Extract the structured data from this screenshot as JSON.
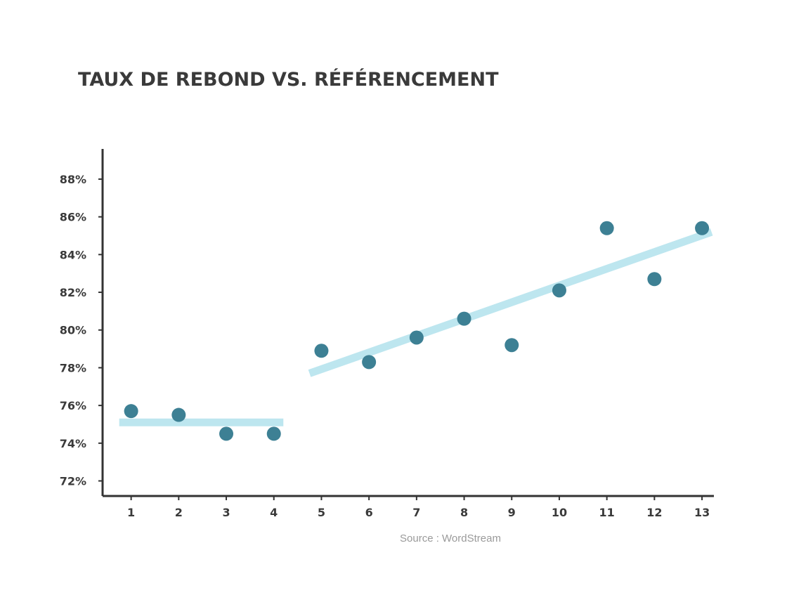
{
  "chart_data": {
    "type": "scatter",
    "title": "TAUX DE REBOND VS. RÉFÉRENCEMENT",
    "xlabel": "",
    "ylabel": "",
    "x": [
      1,
      2,
      3,
      4,
      5,
      6,
      7,
      8,
      9,
      10,
      11,
      12,
      13
    ],
    "x_tick_labels": [
      "1",
      "2",
      "3",
      "4",
      "5",
      "6",
      "7",
      "8",
      "9",
      "10",
      "11",
      "12",
      "13"
    ],
    "y_tick_labels": [
      "72%",
      "74%",
      "76%",
      "78%",
      "80%",
      "82%",
      "84%",
      "86%",
      "88%"
    ],
    "y_ticks": [
      72,
      74,
      76,
      78,
      80,
      82,
      84,
      86,
      88
    ],
    "ylim": [
      71.2,
      89.6
    ],
    "xlim": [
      0.4,
      13.25
    ],
    "series": [
      {
        "values": [
          75.7,
          75.5,
          74.5,
          74.5,
          78.9,
          78.3,
          79.6,
          80.6,
          79.2,
          82.1,
          85.4,
          82.7,
          85.4
        ]
      }
    ],
    "trendlines": [
      {
        "x": [
          0.75,
          4.2
        ],
        "y": [
          75.1,
          75.1
        ]
      },
      {
        "x": [
          4.75,
          13.2
        ],
        "y": [
          77.7,
          85.2
        ]
      }
    ],
    "source": "Source : WordStream",
    "colors": {
      "points": "#3d8094",
      "trend": "#bde6ef",
      "axis": "#333333",
      "text": "#3a3a3a",
      "source": "#9a9a9a"
    },
    "grid": false,
    "legend": "none"
  }
}
